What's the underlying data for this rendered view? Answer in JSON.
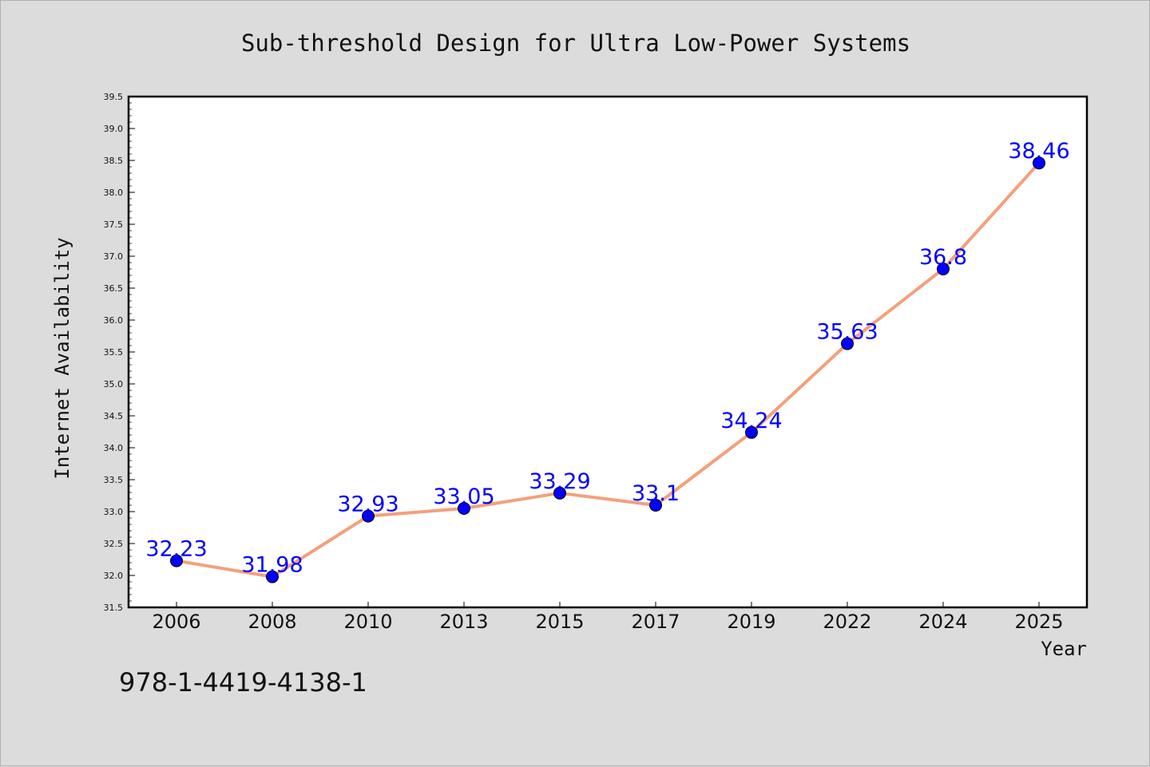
{
  "chart_data": {
    "type": "line",
    "title": "Sub-threshold Design for Ultra Low-Power Systems",
    "xlabel": "Year",
    "ylabel": "Internet Availability",
    "categories": [
      "2006",
      "2008",
      "2010",
      "2013",
      "2015",
      "2017",
      "2019",
      "2022",
      "2024",
      "2025"
    ],
    "series": [
      {
        "values": [
          32.23,
          31.98,
          32.93,
          33.05,
          33.29,
          33.1,
          34.24,
          35.63,
          36.8,
          38.46
        ],
        "labels": [
          "32.23",
          "31.98",
          "32.93",
          "33.05",
          "33.29",
          "33.1",
          "34.24",
          "35.63",
          "36.8",
          "38.46"
        ],
        "line_color": "#f4a07a",
        "marker_color": "#0000ff"
      }
    ],
    "ylim": [
      31.5,
      39.5
    ],
    "yticks": [
      "31.5",
      "32.0",
      "32.5",
      "33.0",
      "33.5",
      "34.0",
      "34.5",
      "35.0",
      "35.5",
      "36.0",
      "36.5",
      "37.0",
      "37.5",
      "38.0",
      "38.5",
      "39.0",
      "39.5"
    ],
    "grid": false,
    "legend": "none"
  },
  "annotation": "978-1-4419-4138-1",
  "colors": {
    "background": "#dcdcdc",
    "plot_background": "#ffffff",
    "label_color": "#0000ff"
  }
}
